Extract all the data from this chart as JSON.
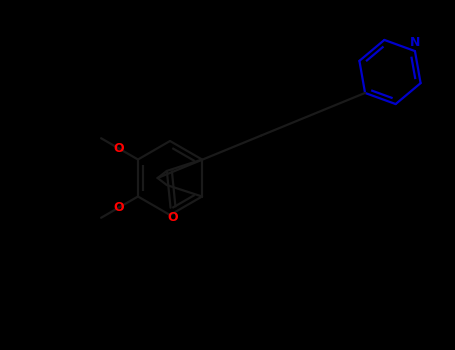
{
  "bg_color": "#000000",
  "bond_color": "#1a1a1a",
  "o_color": "#ff0000",
  "n_color": "#0000cc",
  "lw": 1.6,
  "figsize": [
    4.55,
    3.5
  ],
  "dpi": 100,
  "fs": 8,
  "xlim": [
    0,
    455
  ],
  "ylim": [
    0,
    350
  ]
}
